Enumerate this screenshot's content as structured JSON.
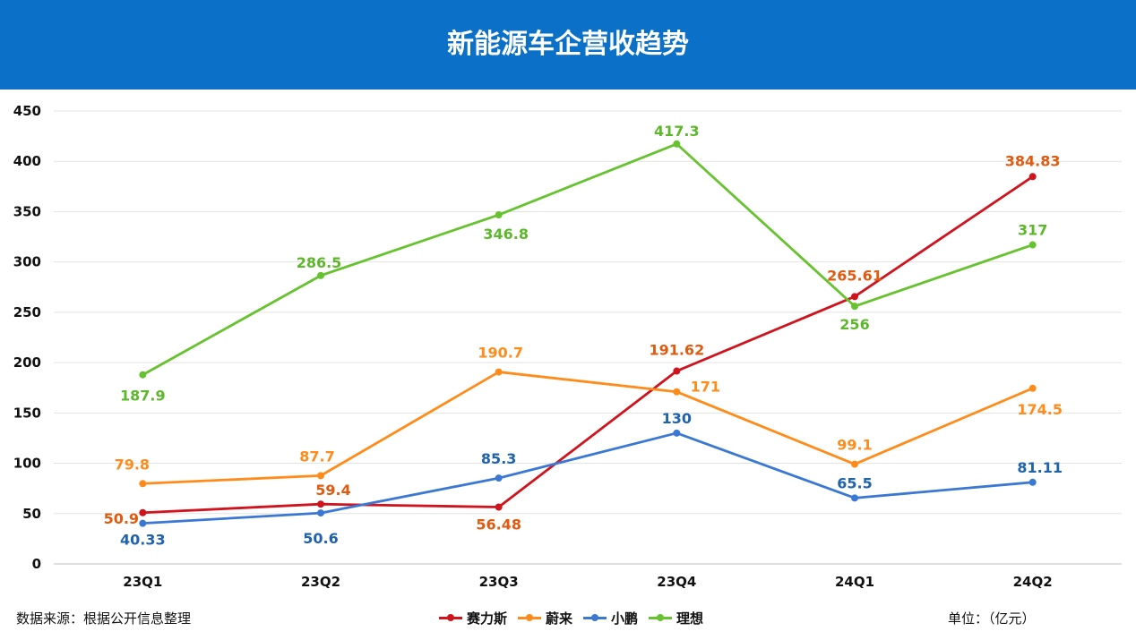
{
  "header": {
    "title": "新能源车企营收趋势"
  },
  "footer": {
    "source": "数据来源：根据公开信息整理",
    "unit": "单位：（亿元）"
  },
  "chart_data": {
    "type": "line",
    "title": "新能源车企营收趋势",
    "categories": [
      "23Q1",
      "23Q2",
      "23Q3",
      "23Q4",
      "24Q1",
      "24Q2"
    ],
    "ylim": [
      0,
      450
    ],
    "yticks": [
      0,
      50,
      100,
      150,
      200,
      250,
      300,
      350,
      400,
      450
    ],
    "grid": true,
    "legend_position": "bottom",
    "series": [
      {
        "name": "赛力斯",
        "color": "#d0141e",
        "label_color": "#e05a10",
        "values": [
          50.9,
          59.4,
          56.48,
          191.62,
          265.61,
          384.83
        ],
        "labels": [
          "50.9",
          "59.4",
          "56.48",
          "191.62",
          "265.61",
          "384.83"
        ]
      },
      {
        "name": "蔚来",
        "color": "#ff8c1a",
        "label_color": "#ff8c1a",
        "values": [
          79.8,
          87.7,
          190.7,
          171,
          99.1,
          174.5
        ],
        "labels": [
          "79.8",
          "87.7",
          "190.7",
          "171",
          "99.1",
          "174.5"
        ]
      },
      {
        "name": "小鹏",
        "color": "#3a78d4",
        "label_color": "#1f63ad",
        "values": [
          40.33,
          50.6,
          85.3,
          130,
          65.5,
          81.11
        ],
        "labels": [
          "40.33",
          "50.6",
          "85.3",
          "130",
          "65.5",
          "81.11"
        ]
      },
      {
        "name": "理想",
        "color": "#66c22e",
        "label_color": "#5cb82a",
        "values": [
          187.9,
          286.5,
          346.8,
          417.3,
          256,
          317
        ],
        "labels": [
          "187.9",
          "286.5",
          "346.8",
          "417.3",
          "256",
          "317"
        ]
      }
    ]
  }
}
